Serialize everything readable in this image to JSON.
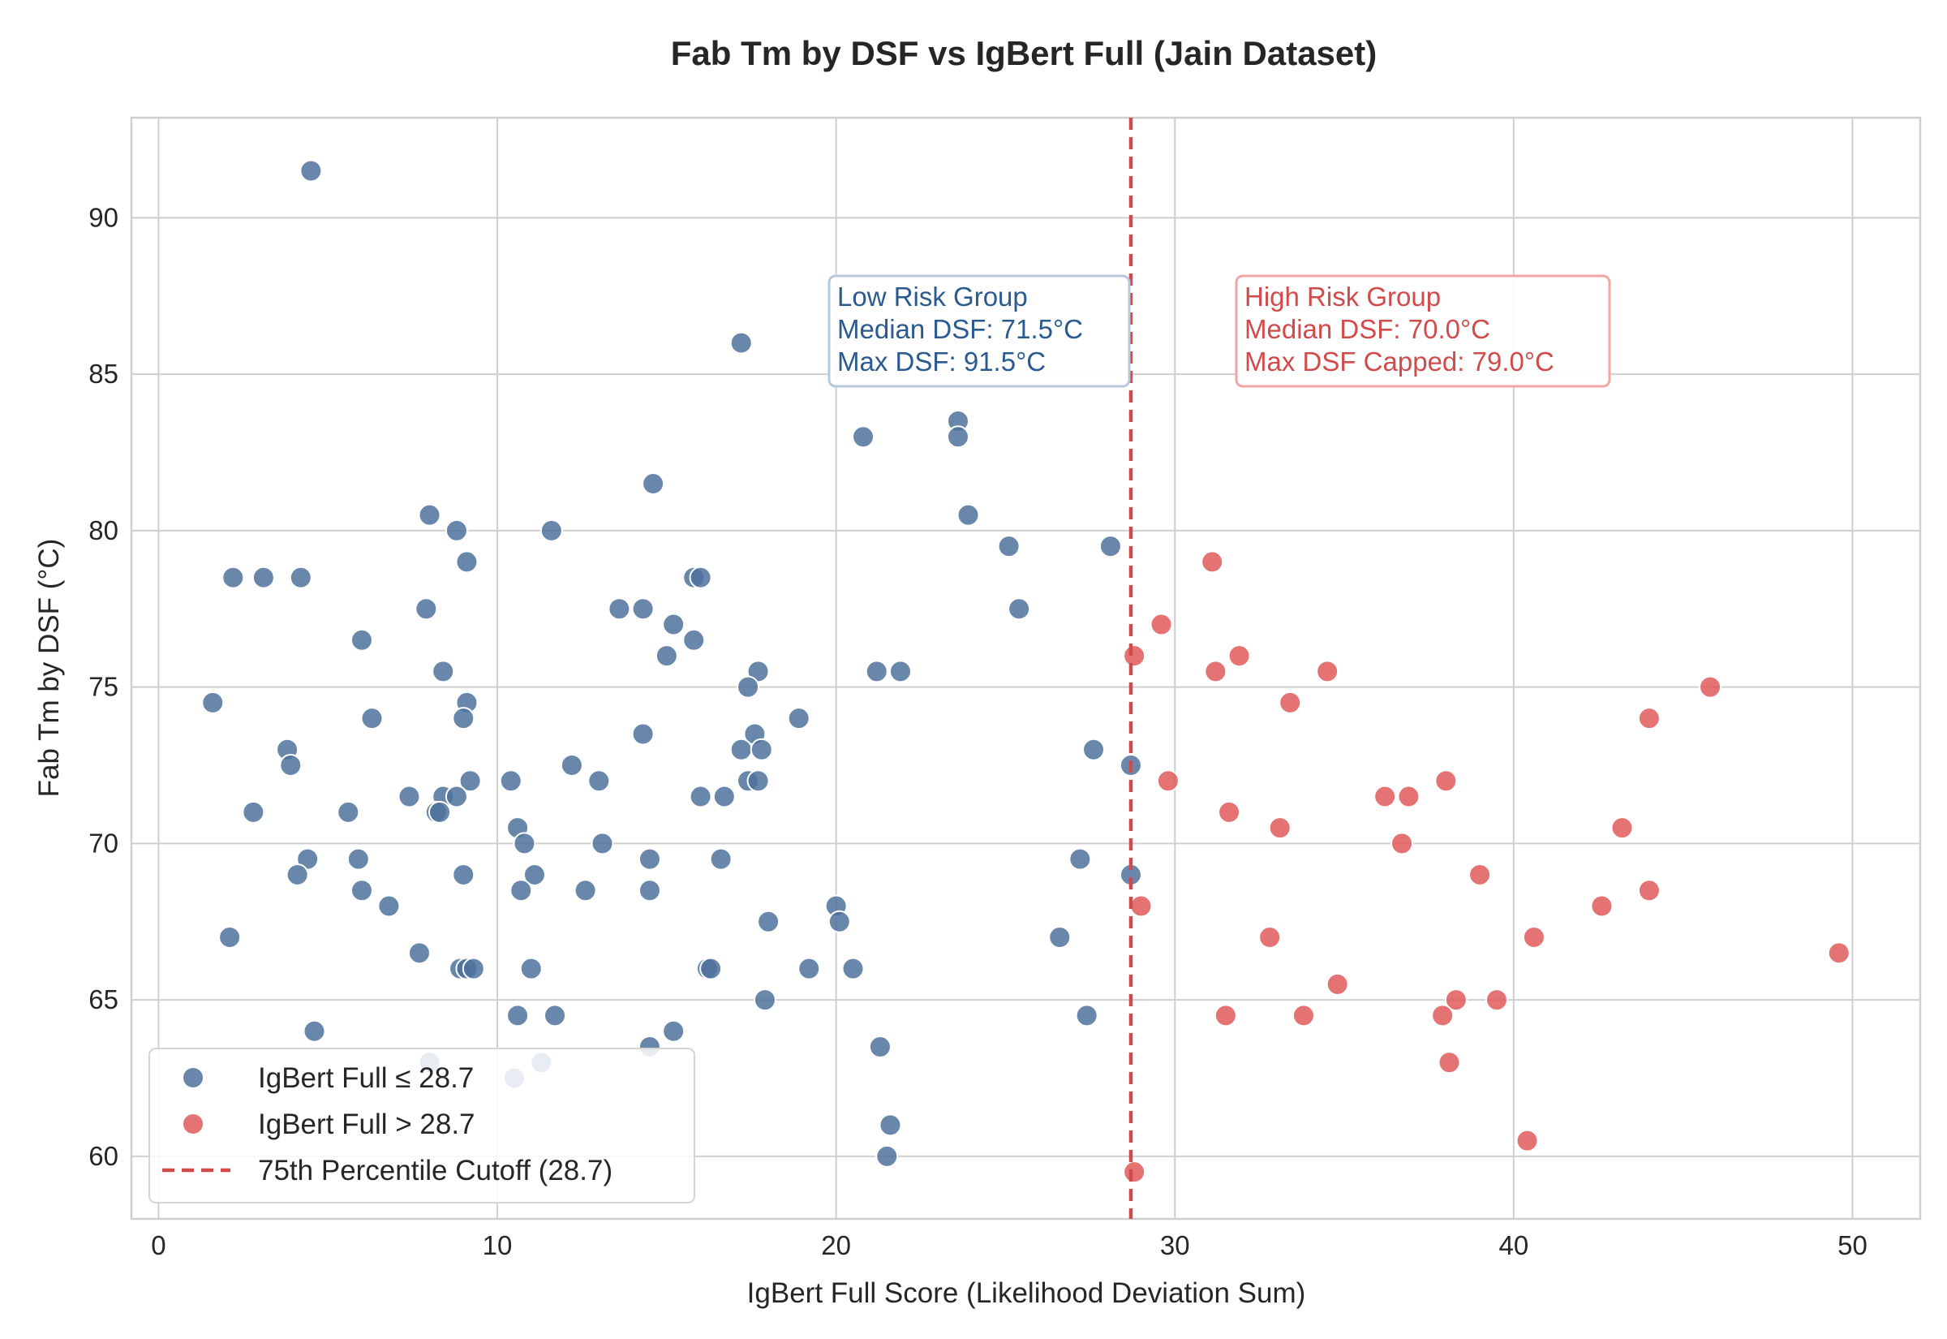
{
  "chart_data": {
    "type": "scatter",
    "title": "Fab Tm by DSF vs IgBert Full (Jain Dataset)",
    "xlabel": "IgBert Full Score (Likelihood Deviation Sum)",
    "ylabel": "Fab Tm by DSF (°C)",
    "xlim": [
      -0.8,
      52
    ],
    "ylim": [
      58,
      93.2
    ],
    "xticks": [
      0,
      10,
      20,
      30,
      40,
      50
    ],
    "yticks": [
      60,
      65,
      70,
      75,
      80,
      85,
      90
    ],
    "grid": true,
    "legend_position": "bottom-left",
    "cutoff": {
      "x": 28.7,
      "label": "75th Percentile Cutoff (28.7)",
      "color": "#d14b4b"
    },
    "series": [
      {
        "name": "IgBert Full ≤ 28.7",
        "color": "#4f729c",
        "points": [
          [
            4.5,
            91.5
          ],
          [
            17.2,
            86.0
          ],
          [
            23.6,
            83.5
          ],
          [
            23.6,
            83.0
          ],
          [
            20.8,
            83.0
          ],
          [
            14.6,
            81.5
          ],
          [
            8.0,
            80.5
          ],
          [
            23.9,
            80.5
          ],
          [
            8.8,
            80.0
          ],
          [
            11.6,
            80.0
          ],
          [
            25.1,
            79.5
          ],
          [
            28.1,
            79.5
          ],
          [
            9.1,
            79.0
          ],
          [
            2.2,
            78.5
          ],
          [
            3.1,
            78.5
          ],
          [
            4.2,
            78.5
          ],
          [
            15.8,
            78.5
          ],
          [
            16.0,
            78.5
          ],
          [
            7.9,
            77.5
          ],
          [
            13.6,
            77.5
          ],
          [
            14.3,
            77.5
          ],
          [
            25.4,
            77.5
          ],
          [
            15.2,
            77.0
          ],
          [
            6.0,
            76.5
          ],
          [
            15.8,
            76.5
          ],
          [
            15.0,
            76.0
          ],
          [
            8.4,
            75.5
          ],
          [
            17.7,
            75.5
          ],
          [
            21.2,
            75.5
          ],
          [
            21.9,
            75.5
          ],
          [
            17.4,
            75.0
          ],
          [
            1.6,
            74.5
          ],
          [
            9.1,
            74.5
          ],
          [
            6.3,
            74.0
          ],
          [
            9.0,
            74.0
          ],
          [
            18.9,
            74.0
          ],
          [
            14.3,
            73.5
          ],
          [
            17.6,
            73.5
          ],
          [
            3.8,
            73.0
          ],
          [
            17.2,
            73.0
          ],
          [
            17.8,
            73.0
          ],
          [
            27.6,
            73.0
          ],
          [
            3.9,
            72.5
          ],
          [
            12.2,
            72.5
          ],
          [
            28.7,
            72.5
          ],
          [
            9.2,
            72.0
          ],
          [
            10.4,
            72.0
          ],
          [
            13.0,
            72.0
          ],
          [
            17.4,
            72.0
          ],
          [
            17.7,
            72.0
          ],
          [
            7.4,
            71.5
          ],
          [
            8.4,
            71.5
          ],
          [
            8.8,
            71.5
          ],
          [
            16.0,
            71.5
          ],
          [
            16.7,
            71.5
          ],
          [
            2.8,
            71.0
          ],
          [
            5.6,
            71.0
          ],
          [
            8.2,
            71.0
          ],
          [
            8.3,
            71.0
          ],
          [
            10.6,
            70.5
          ],
          [
            10.8,
            70.0
          ],
          [
            13.1,
            70.0
          ],
          [
            4.4,
            69.5
          ],
          [
            5.9,
            69.5
          ],
          [
            14.5,
            69.5
          ],
          [
            16.6,
            69.5
          ],
          [
            27.2,
            69.5
          ],
          [
            4.1,
            69.0
          ],
          [
            9.0,
            69.0
          ],
          [
            11.1,
            69.0
          ],
          [
            28.7,
            69.0
          ],
          [
            6.0,
            68.5
          ],
          [
            10.7,
            68.5
          ],
          [
            12.6,
            68.5
          ],
          [
            14.5,
            68.5
          ],
          [
            6.8,
            68.0
          ],
          [
            20.0,
            68.0
          ],
          [
            18.0,
            67.5
          ],
          [
            20.1,
            67.5
          ],
          [
            2.1,
            67.0
          ],
          [
            26.6,
            67.0
          ],
          [
            7.7,
            66.5
          ],
          [
            8.9,
            66.0
          ],
          [
            9.1,
            66.0
          ],
          [
            9.3,
            66.0
          ],
          [
            11.0,
            66.0
          ],
          [
            16.2,
            66.0
          ],
          [
            16.3,
            66.0
          ],
          [
            19.2,
            66.0
          ],
          [
            20.5,
            66.0
          ],
          [
            17.9,
            65.0
          ],
          [
            10.6,
            64.5
          ],
          [
            11.7,
            64.5
          ],
          [
            27.4,
            64.5
          ],
          [
            4.6,
            64.0
          ],
          [
            15.2,
            64.0
          ],
          [
            14.5,
            63.5
          ],
          [
            21.3,
            63.5
          ],
          [
            8.0,
            63.0
          ],
          [
            11.3,
            63.0
          ],
          [
            10.5,
            62.5
          ],
          [
            21.6,
            61.0
          ],
          [
            21.5,
            60.0
          ]
        ]
      },
      {
        "name": "IgBert Full > 28.7",
        "color": "#e05b5b",
        "points": [
          [
            31.1,
            79.0
          ],
          [
            29.6,
            77.0
          ],
          [
            28.8,
            76.0
          ],
          [
            31.9,
            76.0
          ],
          [
            31.2,
            75.5
          ],
          [
            34.5,
            75.5
          ],
          [
            45.8,
            75.0
          ],
          [
            33.4,
            74.5
          ],
          [
            44.0,
            74.0
          ],
          [
            29.8,
            72.0
          ],
          [
            38.0,
            72.0
          ],
          [
            36.2,
            71.5
          ],
          [
            36.9,
            71.5
          ],
          [
            31.6,
            71.0
          ],
          [
            33.1,
            70.5
          ],
          [
            43.2,
            70.5
          ],
          [
            36.7,
            70.0
          ],
          [
            39.0,
            69.0
          ],
          [
            44.0,
            68.5
          ],
          [
            29.0,
            68.0
          ],
          [
            42.6,
            68.0
          ],
          [
            32.8,
            67.0
          ],
          [
            40.6,
            67.0
          ],
          [
            49.6,
            66.5
          ],
          [
            34.8,
            65.5
          ],
          [
            38.3,
            65.0
          ],
          [
            39.5,
            65.0
          ],
          [
            31.5,
            64.5
          ],
          [
            33.8,
            64.5
          ],
          [
            37.9,
            64.5
          ],
          [
            38.1,
            63.0
          ],
          [
            40.4,
            60.5
          ],
          [
            28.8,
            59.5
          ]
        ]
      }
    ],
    "annotations": [
      {
        "id": "low-risk",
        "lines": [
          "Low Risk Group",
          "Median DSF: 71.5°C",
          "Max DSF: 91.5°C"
        ],
        "color": "#2a5a8f",
        "border_color": "#b8c8dc"
      },
      {
        "id": "high-risk",
        "lines": [
          "High Risk Group",
          "Median DSF: 70.0°C",
          "Max DSF Capped: 79.0°C"
        ],
        "color": "#d14b4b",
        "border_color": "#f1a5a5"
      }
    ]
  }
}
